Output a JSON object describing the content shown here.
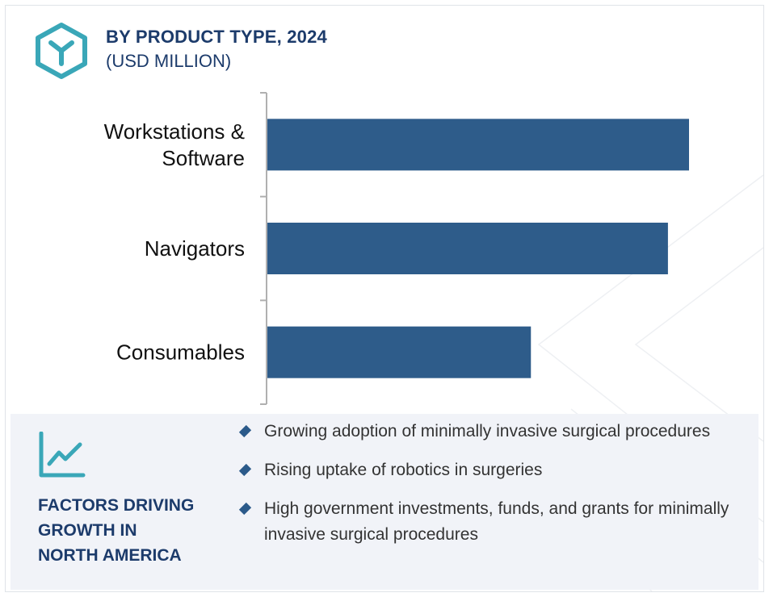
{
  "header": {
    "title": "BY PRODUCT TYPE, 2024",
    "subtitle": "(USD MILLION)"
  },
  "colors": {
    "bar": "#2e5c8a",
    "accent": "#3aa7b8",
    "title": "#1c3b6b",
    "panel_bg": "#f1f3f8",
    "axis": "#b0b0b0"
  },
  "chart_data": {
    "type": "bar",
    "orientation": "horizontal",
    "categories": [
      "Workstations &\nSoftware",
      "Navigators",
      "Consumables"
    ],
    "values": [
      100,
      95,
      62.5
    ],
    "title": "BY PRODUCT TYPE, 2024",
    "subtitle": "(USD MILLION)",
    "xlabel": "",
    "ylabel": "",
    "xlim": [
      0,
      100
    ],
    "grid": false,
    "legend": "none",
    "value_note": "relative bar lengths; axis values not printed"
  },
  "factors": {
    "icon": "line-chart-icon",
    "title": "FACTORS DRIVING\nGROWTH IN\nNORTH AMERICA",
    "items": [
      "Growing adoption of minimally invasive surgical procedures",
      "Rising uptake of robotics in surgeries",
      "High government investments, funds, and grants for minimally invasive surgical procedures"
    ]
  }
}
